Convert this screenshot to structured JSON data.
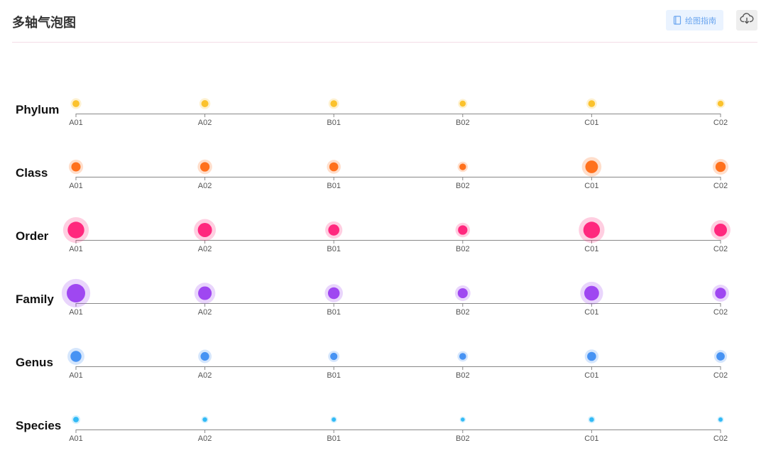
{
  "header": {
    "title": "多轴气泡图",
    "guide_label": "绘图指南",
    "guide_icon": "book-icon",
    "download_icon": "cloud-download-icon"
  },
  "chart_data": {
    "type": "scatter",
    "subtype": "multi-axis bubble",
    "categories": [
      "A01",
      "A02",
      "B01",
      "B02",
      "C01",
      "C02"
    ],
    "series": [
      {
        "name": "Phylum",
        "color": "#fbbf24",
        "values": [
          0.25,
          0.26,
          0.24,
          0.19,
          0.24,
          0.18
        ]
      },
      {
        "name": "Class",
        "color": "#ff6a13",
        "values": [
          0.4,
          0.41,
          0.38,
          0.23,
          0.62,
          0.46
        ]
      },
      {
        "name": "Order",
        "color": "#ff1f78",
        "values": [
          0.88,
          0.72,
          0.52,
          0.41,
          0.88,
          0.63
        ]
      },
      {
        "name": "Family",
        "color": "#9b3ff0",
        "values": [
          1.0,
          0.68,
          0.56,
          0.45,
          0.76,
          0.51
        ]
      },
      {
        "name": "Genus",
        "color": "#3f8ef2",
        "values": [
          0.51,
          0.36,
          0.27,
          0.24,
          0.38,
          0.34
        ]
      },
      {
        "name": "Species",
        "color": "#29b6f6",
        "values": [
          0.16,
          0.09,
          0.07,
          0.05,
          0.1,
          0.07
        ]
      }
    ],
    "grid": false,
    "legend": "none",
    "xlabel": "",
    "ylabel": ""
  }
}
